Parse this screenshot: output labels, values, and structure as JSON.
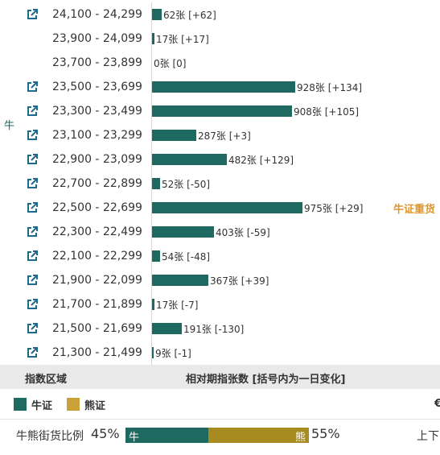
{
  "side_label": "牛",
  "heavy_tag": "牛证重货",
  "header": {
    "left": "指数区域",
    "center": "相对期指张数 [括号内为一日变化]"
  },
  "legend": {
    "bull": "牛证",
    "bear": "熊证",
    "cut_text": "€"
  },
  "ratio": {
    "label": "牛熊街货比例",
    "bull_pct": "45%",
    "bull_text": "牛",
    "bear_text": "熊",
    "bear_pct": "55%",
    "bull_fraction": 0.45,
    "updown": "上下"
  },
  "colors": {
    "bull": "#1e6a61",
    "bear": "#a78a20",
    "heavy": "#e0962e"
  },
  "chart_data": {
    "type": "bar",
    "orientation": "horizontal",
    "xlim": [
      0,
      1000
    ],
    "categories": [
      "24,100 - 24,299",
      "23,900 - 24,099",
      "23,700 - 23,899",
      "23,500 - 23,699",
      "23,300 - 23,499",
      "23,100 - 23,299",
      "22,900 - 23,099",
      "22,700 - 22,899",
      "22,500 - 22,699",
      "22,300 - 22,499",
      "22,100 - 22,299",
      "21,900 - 22,099",
      "21,700 - 21,899",
      "21,500 - 21,699",
      "21,300 - 21,499"
    ],
    "values": [
      62,
      17,
      0,
      928,
      908,
      287,
      482,
      52,
      975,
      403,
      54,
      367,
      17,
      191,
      9
    ],
    "labels": [
      "62张 [+62]",
      "17张 [+17]",
      "0张 [0]",
      "928张 [+134]",
      "908张 [+105]",
      "287张 [+3]",
      "482张 [+129]",
      "52张 [-50]",
      "975张 [+29]",
      "403张 [-59]",
      "54张 [-48]",
      "367张 [+39]",
      "17张 [-7]",
      "191张 [-130]",
      "9张 [-1]"
    ],
    "has_link": [
      true,
      false,
      false,
      true,
      true,
      true,
      true,
      true,
      true,
      true,
      true,
      true,
      true,
      true,
      true
    ],
    "heavy_index": 8
  }
}
